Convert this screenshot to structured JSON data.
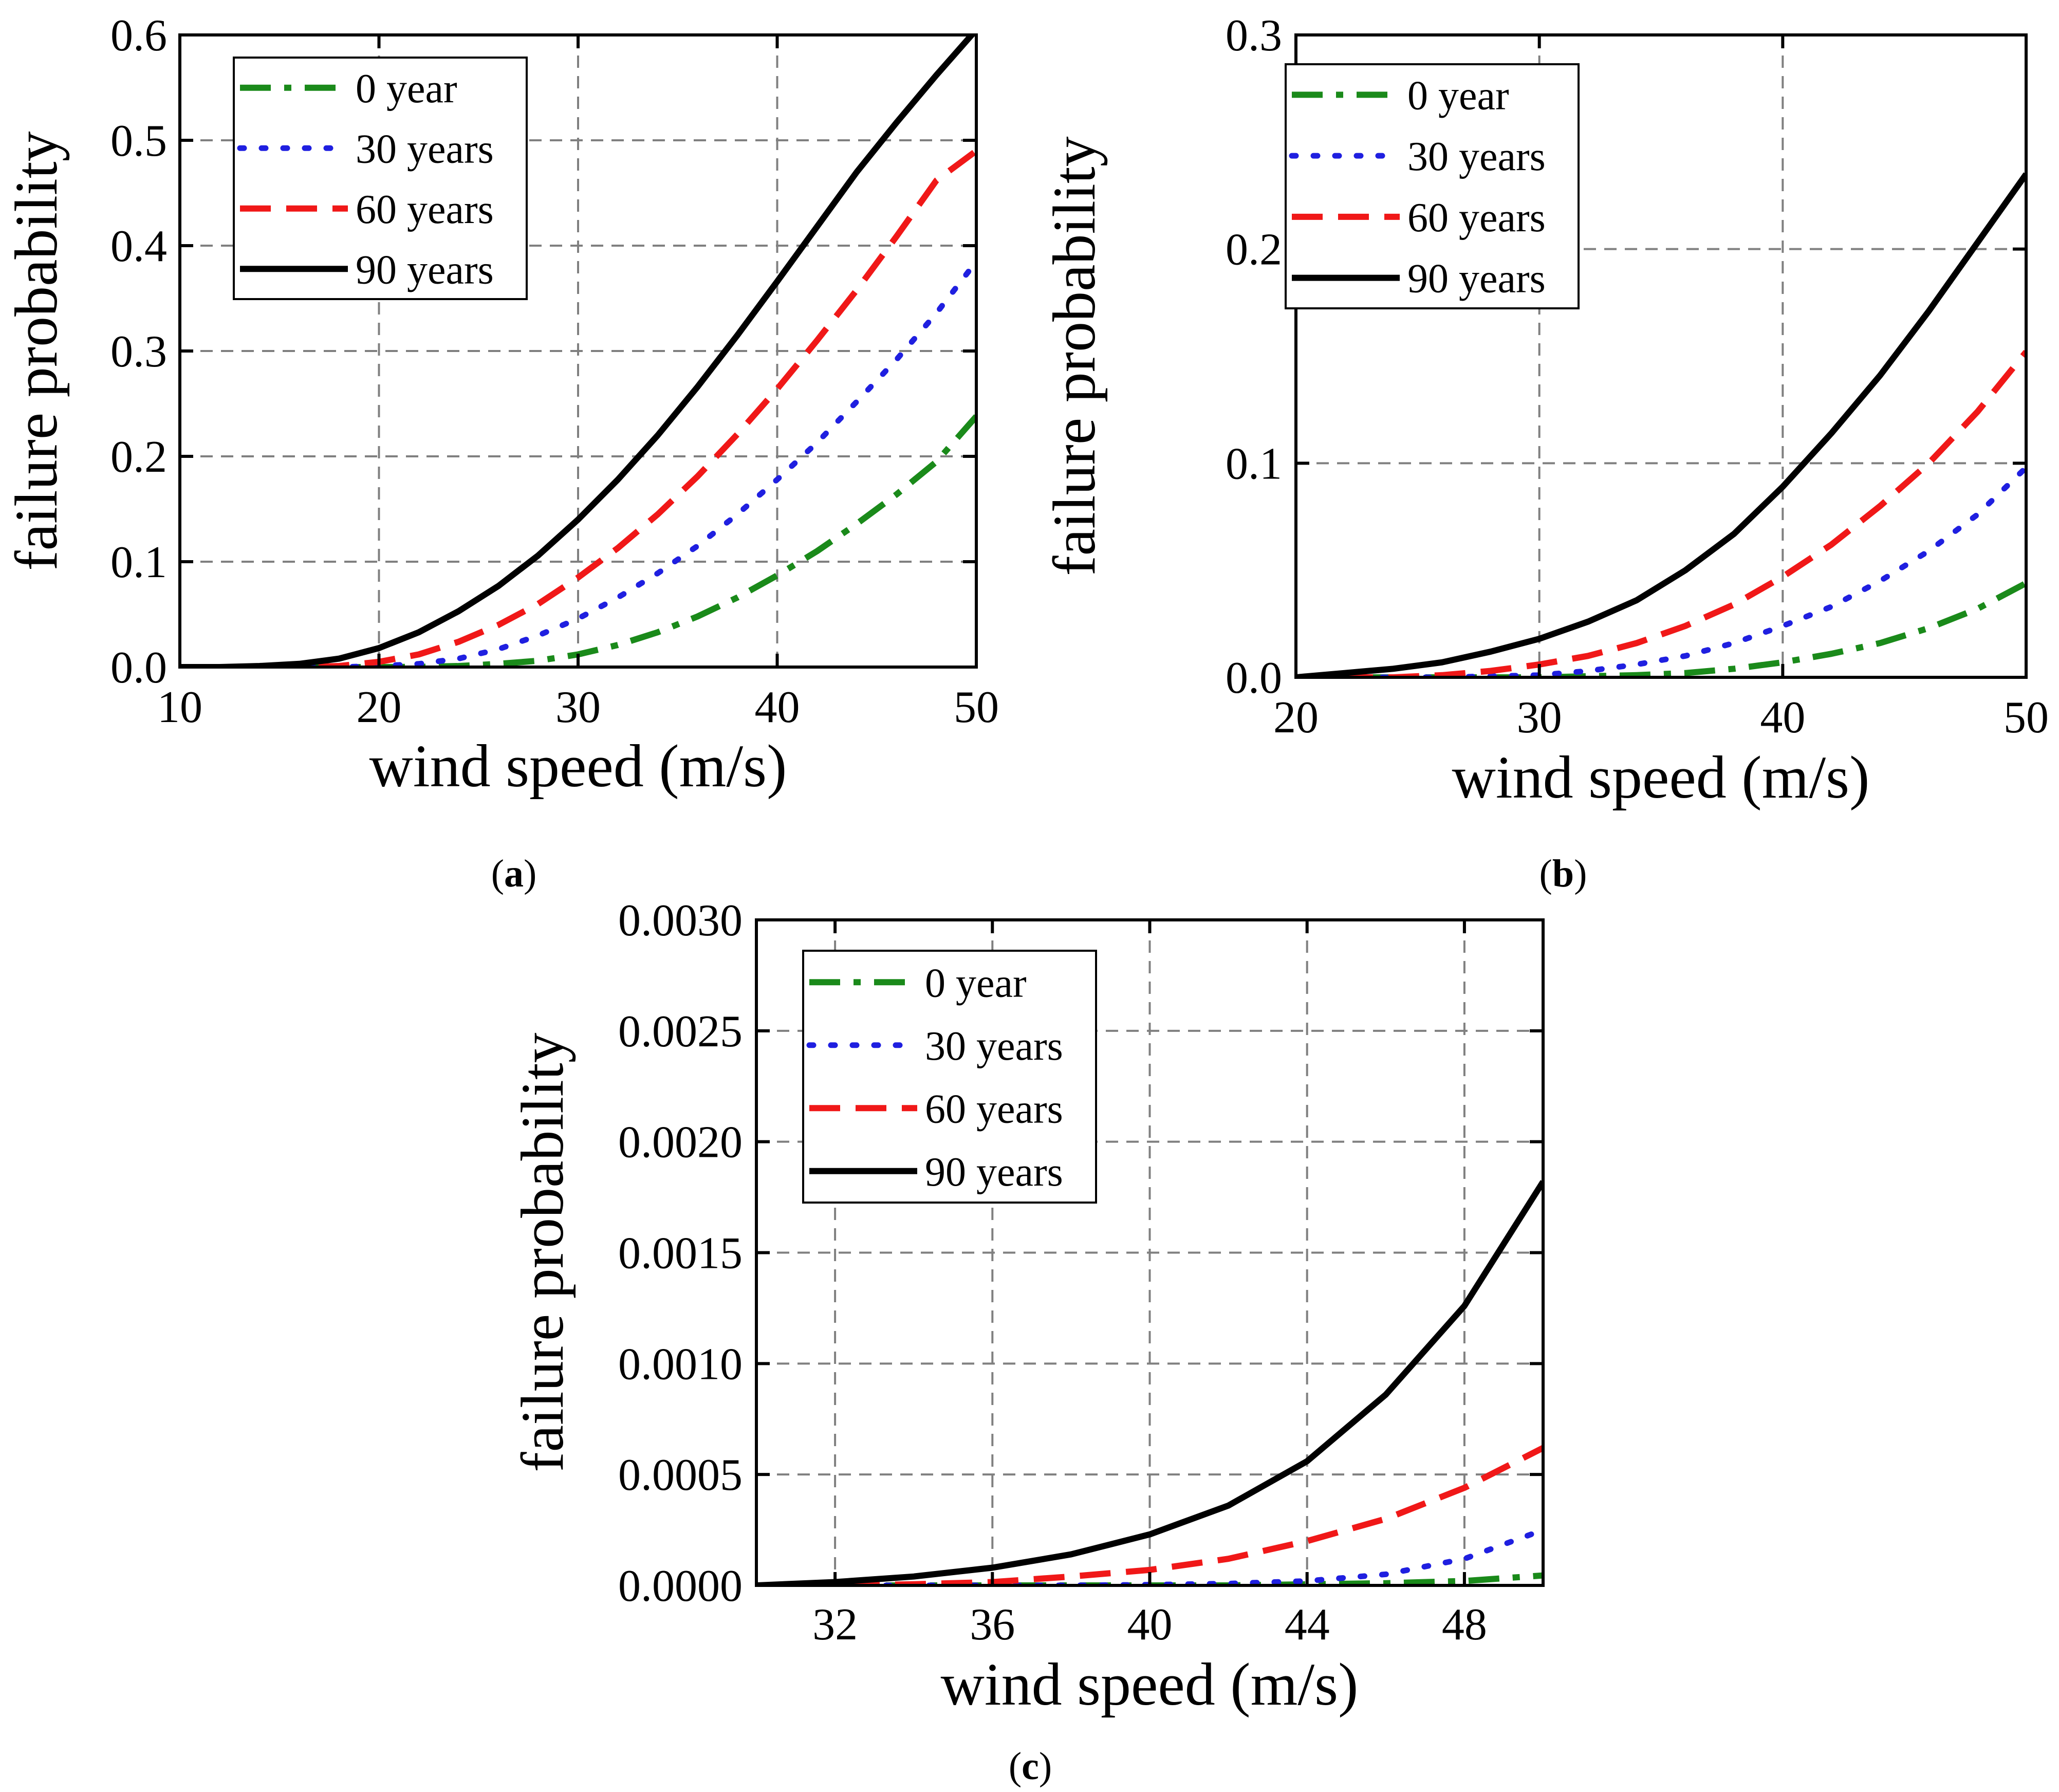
{
  "figure_captions": [
    {
      "open": "(",
      "letter": "a",
      "close": ")"
    },
    {
      "open": "(",
      "letter": "b",
      "close": ")"
    },
    {
      "open": "(",
      "letter": "c",
      "close": ")"
    }
  ],
  "chart_data": [
    {
      "type": "line",
      "panel": "a",
      "xlabel": "wind speed (m/s)",
      "ylabel": "failure probability",
      "xlim": [
        10,
        50
      ],
      "ylim": [
        0,
        0.6
      ],
      "xticks": [
        10,
        20,
        30,
        40,
        50
      ],
      "xtick_labels": [
        "10",
        "20",
        "30",
        "40",
        "50"
      ],
      "yticks": [
        0,
        0.1,
        0.2,
        0.3,
        0.4,
        0.5,
        0.6
      ],
      "ytick_labels": [
        "0.0",
        "0.1",
        "0.2",
        "0.3",
        "0.4",
        "0.5",
        "0.6"
      ],
      "grid": true,
      "legend_position": "top-left",
      "x": [
        10,
        12,
        14,
        16,
        18,
        20,
        22,
        24,
        26,
        28,
        30,
        32,
        34,
        36,
        38,
        40,
        42,
        44,
        46,
        48,
        50
      ],
      "series": [
        {
          "name": "0 year",
          "color": "#1a8a1a",
          "style": "dashdot",
          "values": [
            0,
            0,
            0,
            0,
            0,
            0,
            0.0002,
            0.001,
            0.003,
            0.006,
            0.012,
            0.021,
            0.033,
            0.048,
            0.066,
            0.087,
            0.11,
            0.136,
            0.164,
            0.195,
            0.238
          ]
        },
        {
          "name": "30 years",
          "color": "#1f1fe0",
          "style": "dotted",
          "values": [
            0,
            0,
            0,
            0,
            0,
            0.001,
            0.003,
            0.008,
            0.017,
            0.03,
            0.046,
            0.066,
            0.089,
            0.115,
            0.145,
            0.178,
            0.213,
            0.252,
            0.292,
            0.336,
            0.385
          ]
        },
        {
          "name": "60 years",
          "color": "#f01818",
          "style": "dashed",
          "values": [
            0,
            0,
            0,
            0,
            0.001,
            0.005,
            0.012,
            0.024,
            0.04,
            0.06,
            0.085,
            0.113,
            0.145,
            0.181,
            0.221,
            0.264,
            0.31,
            0.358,
            0.409,
            0.462,
            0.49
          ]
        },
        {
          "name": "90 years",
          "color": "#000000",
          "style": "solid",
          "values": [
            0,
            0,
            0.001,
            0.003,
            0.008,
            0.018,
            0.033,
            0.053,
            0.077,
            0.106,
            0.14,
            0.178,
            0.22,
            0.266,
            0.315,
            0.366,
            0.418,
            0.47,
            0.517,
            0.562,
            0.605
          ]
        }
      ]
    },
    {
      "type": "line",
      "panel": "b",
      "xlabel": "wind speed (m/s)",
      "ylabel": "failure probability",
      "xlim": [
        20,
        50
      ],
      "ylim": [
        0,
        0.3
      ],
      "xticks": [
        20,
        30,
        40,
        50
      ],
      "xtick_labels": [
        "20",
        "30",
        "40",
        "50"
      ],
      "yticks": [
        0,
        0.1,
        0.2,
        0.3
      ],
      "ytick_labels": [
        "0.0",
        "0.1",
        "0.2",
        "0.3"
      ],
      "grid": true,
      "legend_position": "top-left",
      "x": [
        20,
        22,
        24,
        26,
        28,
        30,
        32,
        34,
        36,
        38,
        40,
        42,
        44,
        46,
        48,
        50
      ],
      "series": [
        {
          "name": "0 year",
          "color": "#1a8a1a",
          "style": "dashdot",
          "values": [
            0,
            0,
            0,
            0,
            0,
            0,
            0.0005,
            0.001,
            0.002,
            0.004,
            0.007,
            0.011,
            0.016,
            0.023,
            0.032,
            0.044
          ]
        },
        {
          "name": "30 years",
          "color": "#1f1fe0",
          "style": "dotted",
          "values": [
            0,
            0,
            0,
            0,
            0.0005,
            0.001,
            0.003,
            0.006,
            0.01,
            0.016,
            0.024,
            0.033,
            0.045,
            0.059,
            0.076,
            0.098
          ]
        },
        {
          "name": "60 years",
          "color": "#f01818",
          "style": "dashed",
          "values": [
            0,
            0,
            0,
            0.001,
            0.003,
            0.006,
            0.01,
            0.016,
            0.024,
            0.034,
            0.047,
            0.062,
            0.08,
            0.1,
            0.124,
            0.152
          ]
        },
        {
          "name": "90 years",
          "color": "#000000",
          "style": "solid",
          "values": [
            0,
            0.002,
            0.004,
            0.007,
            0.012,
            0.018,
            0.026,
            0.036,
            0.05,
            0.067,
            0.089,
            0.114,
            0.141,
            0.171,
            0.203,
            0.235
          ]
        }
      ]
    },
    {
      "type": "line",
      "panel": "c",
      "xlabel": "wind speed (m/s)",
      "ylabel": "failure probability",
      "xlim": [
        30,
        50
      ],
      "ylim": [
        0,
        0.003
      ],
      "xticks": [
        32,
        36,
        40,
        44,
        48
      ],
      "xtick_labels": [
        "32",
        "36",
        "40",
        "44",
        "48"
      ],
      "yticks": [
        0,
        0.0005,
        0.001,
        0.0015,
        0.002,
        0.0025,
        0.003
      ],
      "ytick_labels": [
        "0.0000",
        "0.0005",
        "0.0010",
        "0.0015",
        "0.0020",
        "0.0025",
        "0.0030"
      ],
      "grid": true,
      "legend_position": "top-left",
      "x": [
        30,
        32,
        34,
        36,
        38,
        40,
        42,
        44,
        46,
        48,
        50
      ],
      "series": [
        {
          "name": "0 year",
          "color": "#1a8a1a",
          "style": "dashdot",
          "values": [
            0,
            0,
            0,
            0,
            0,
            0,
            0,
            5e-06,
            1e-05,
            2e-05,
            4.5e-05
          ]
        },
        {
          "name": "30 years",
          "color": "#1f1fe0",
          "style": "dotted",
          "values": [
            0,
            0,
            0,
            0,
            0,
            3e-06,
            8e-06,
            2e-05,
            5e-05,
            0.00012,
            0.00025
          ]
        },
        {
          "name": "60 years",
          "color": "#f01818",
          "style": "dashed",
          "values": [
            0,
            0,
            5e-06,
            1.5e-05,
            4e-05,
            7e-05,
            0.00012,
            0.0002,
            0.0003,
            0.00044,
            0.00062
          ]
        },
        {
          "name": "90 years",
          "color": "#000000",
          "style": "solid",
          "values": [
            0,
            1.5e-05,
            4e-05,
            8e-05,
            0.00014,
            0.00023,
            0.00036,
            0.00056,
            0.00086,
            0.00126,
            0.00182
          ]
        }
      ]
    }
  ]
}
